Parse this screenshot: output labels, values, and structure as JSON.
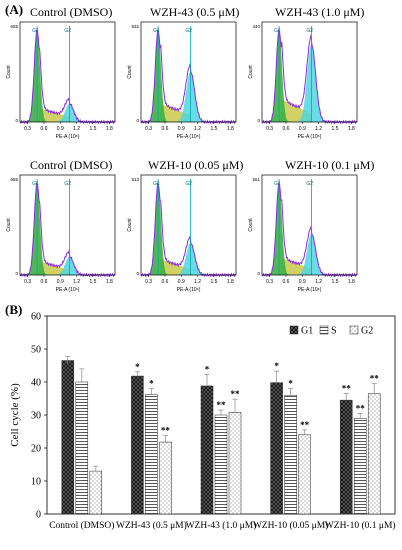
{
  "panel_a_label": "(A)",
  "panel_b_label": "(B)",
  "flow_panels": [
    {
      "title": "Control (DMSO)",
      "ymax_label": "655",
      "g2": 0.2
    },
    {
      "title": "WZH-43  (0.5 μM)",
      "ymax_label": "532",
      "g2": 0.55
    },
    {
      "title": "WZH-43  (1.0 μM)",
      "ymax_label": "440",
      "g2": 0.85
    },
    {
      "title": "Control (DMSO)",
      "ymax_label": "655",
      "g2": 0.2
    },
    {
      "title": "WZH-10  (0.05 μM)",
      "ymax_label": "513",
      "g2": 0.35
    },
    {
      "title": "WZH-10  (0.1 μM)",
      "ymax_label": "551",
      "g2": 0.45
    }
  ],
  "flow_axes": {
    "xlabel": "PE-A",
    "xunit": "(10⁶)",
    "ylabel": "Count",
    "xticks": [
      "0.3",
      "0.6",
      "0.9",
      "1.2",
      "1.5",
      "1.8"
    ],
    "gate_g1": "G1",
    "gate_g2": "G2"
  },
  "colors": {
    "g1": "#3cb043",
    "s": "#c9c94a",
    "g2": "#4fd6e0",
    "fit": "#8a2be2",
    "gate": "#00a6b3"
  },
  "chart_data": {
    "type": "bar",
    "categories": [
      "Control (DMSO)",
      "WZH-43  (0.5 μM)",
      "WZH-43  (1.0 μM)",
      "WZH-10  (0.05 μM)",
      "WZH-10  (0.1 μM)"
    ],
    "series": [
      {
        "name": "G1",
        "values": [
          46.5,
          41.8,
          38.8,
          39.8,
          34.5
        ],
        "errors": [
          1.2,
          1.3,
          3.5,
          3.5,
          2.0
        ],
        "sig": [
          "",
          "*",
          "*",
          "*",
          "**"
        ]
      },
      {
        "name": "S",
        "values": [
          40.0,
          36.2,
          30.0,
          36.0,
          29.0
        ],
        "errors": [
          4.0,
          1.8,
          1.5,
          2.0,
          1.5
        ],
        "sig": [
          "",
          "*",
          "**",
          "*",
          "**"
        ]
      },
      {
        "name": "G2",
        "values": [
          13.0,
          21.8,
          30.8,
          24.0,
          36.5
        ],
        "errors": [
          1.5,
          2.0,
          4.0,
          1.5,
          3.0
        ],
        "sig": [
          "",
          "**",
          "**",
          "**",
          "**"
        ]
      }
    ],
    "ylabel": "Cell cycle (%)",
    "ylim": [
      0,
      60
    ],
    "yticks": [
      "0",
      "10",
      "20",
      "30",
      "40",
      "50",
      "60"
    ],
    "legend_position": "top-right"
  }
}
